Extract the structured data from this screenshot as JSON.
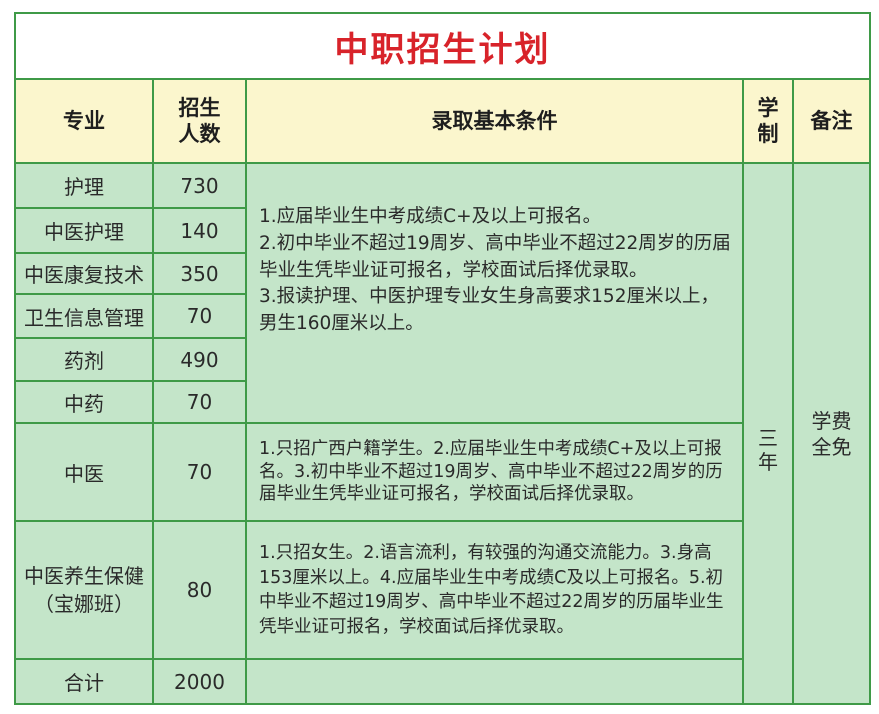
{
  "title": "中职招生计划",
  "headers": {
    "major": "专业",
    "enrollment": "招生人数",
    "criteria": "录取基本条件",
    "duration": "学制",
    "remarks": "备注"
  },
  "rows": [
    {
      "major": "护理",
      "count": "730"
    },
    {
      "major": "中医护理",
      "count": "140"
    },
    {
      "major": "中医康复技术",
      "count": "350"
    },
    {
      "major": "卫生信息管理",
      "count": "70"
    },
    {
      "major": "药剂",
      "count": "490"
    },
    {
      "major": "中药",
      "count": "70"
    },
    {
      "major": "中医",
      "count": "70"
    },
    {
      "major": "中医养生保健",
      "major_note": "（宝娜班）",
      "count": "80"
    },
    {
      "major": "合计",
      "count": "2000"
    }
  ],
  "criteria_group1": [
    "1.应届毕业生中考成绩C+及以上可报名。",
    "2.初中毕业不超过19周岁、高中毕业不超过22周岁的历届毕业生凭毕业证可报名，学校面试后择优录取。",
    "3.报读护理、中医护理专业女生身高要求152厘米以上，男生160厘米以上。"
  ],
  "criteria_tcm": "1.只招广西户籍学生。2.应届毕业生中考成绩C+及以上可报名。3.初中毕业不超过19周岁、高中毕业不超过22周岁的历届毕业生凭毕业证可报名，学校面试后择优录取。",
  "criteria_wellness": "1.只招女生。2.语言流利，有较强的沟通交流能力。3.身高153厘米以上。4.应届毕业生中考成绩C及以上可报名。5.初中毕业不超过19周岁、高中毕业不超过22周岁的历届毕业生凭毕业证可报名，学校面试后择优录取。",
  "duration": "三年",
  "remarks": "学费全免",
  "colors": {
    "title": "#d8232a",
    "header_bg": "#fbf6cd",
    "body_bg": "#c4e5c9",
    "border": "#3f9a47"
  }
}
